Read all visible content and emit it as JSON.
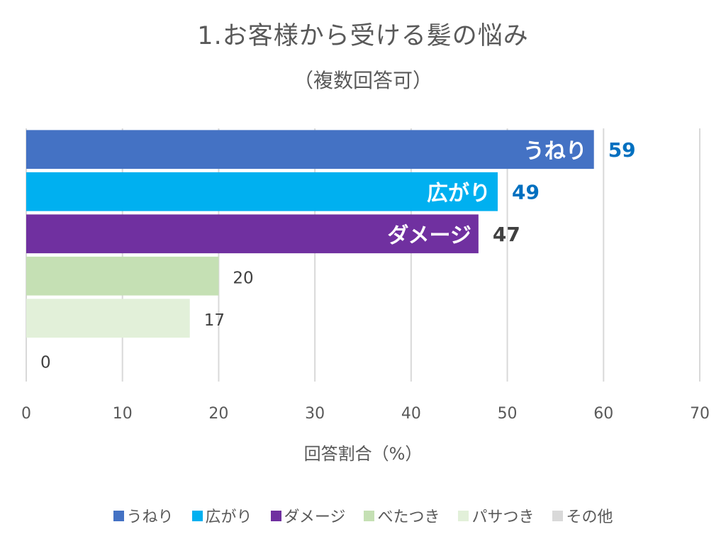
{
  "chart_data": {
    "type": "bar",
    "orientation": "horizontal",
    "title": "1.お客様から受ける髪の悩み",
    "subtitle": "（複数回答可）",
    "xlabel": "回答割合（%）",
    "ylabel": "",
    "xlim": [
      0,
      70
    ],
    "xticks": [
      "0",
      "10",
      "20",
      "30",
      "40",
      "50",
      "60",
      "70"
    ],
    "grid": true,
    "legend_position": "bottom",
    "categories": [
      "うねり",
      "広がり",
      "ダメージ",
      "べたつき",
      "パサつき",
      "その他"
    ],
    "values": [
      59,
      49,
      47,
      20,
      17,
      0
    ],
    "colors": [
      "#4472C4",
      "#00B0F0",
      "#7030A0",
      "#C5E0B4",
      "#E2F0D9",
      "#D9D9D9"
    ],
    "inbar_labels": [
      "うねり",
      "広がり",
      "ダメージ",
      "",
      "",
      ""
    ],
    "value_label_colors": [
      "#0070C0",
      "#0070C0",
      "#404040",
      "#404040",
      "#404040",
      "#404040"
    ],
    "value_label_bold": [
      true,
      true,
      true,
      false,
      false,
      false
    ]
  }
}
